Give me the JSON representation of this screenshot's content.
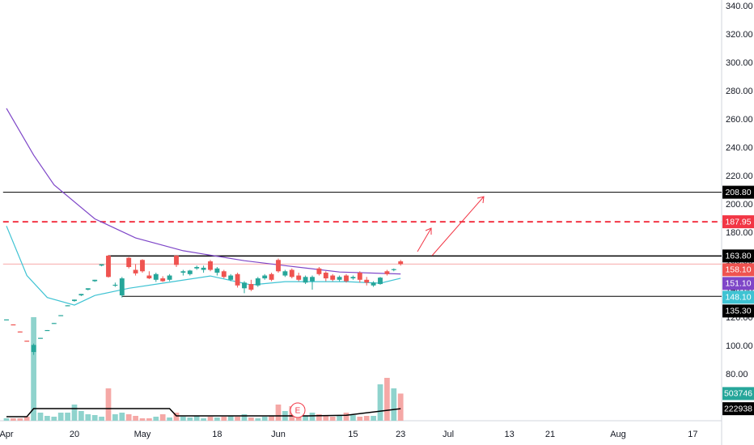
{
  "chart_data": {
    "type": "candlestick",
    "xlim": [
      -0.5,
      104.5
    ],
    "xticks": [
      {
        "value": 0,
        "label": "Apr"
      },
      {
        "value": 10,
        "label": "20"
      },
      {
        "value": 20,
        "label": "May"
      },
      {
        "value": 31,
        "label": "18"
      },
      {
        "value": 40,
        "label": "Jun"
      },
      {
        "value": 51,
        "label": "15"
      },
      {
        "value": 58,
        "label": "23"
      },
      {
        "value": 65,
        "label": "Jul"
      },
      {
        "value": 74,
        "label": "13"
      },
      {
        "value": 80,
        "label": "21"
      },
      {
        "value": 90,
        "label": "Aug"
      },
      {
        "value": 101,
        "label": "17"
      }
    ],
    "ylim": [
      47.5,
      344.5
    ],
    "yticks": [
      {
        "value": 80,
        "label": "80.00"
      },
      {
        "value": 100,
        "label": "100.00"
      },
      {
        "value": 120,
        "label": "120.00"
      },
      {
        "value": 140,
        "label": "140.00"
      },
      {
        "value": 160,
        "label": "160.00"
      },
      {
        "value": 180,
        "label": "180.00"
      },
      {
        "value": 200,
        "label": "200.00"
      },
      {
        "value": 220,
        "label": "220.00"
      },
      {
        "value": 240,
        "label": "240.00"
      },
      {
        "value": 260,
        "label": "260.00"
      },
      {
        "value": 280,
        "label": "280.00"
      },
      {
        "value": 300,
        "label": "300.00"
      },
      {
        "value": 320,
        "label": "320.00"
      },
      {
        "value": 340,
        "label": "340.00"
      }
    ],
    "up_color": "#26a69a",
    "down_color": "#ef5350",
    "volume_up_color": "#8fd3cd",
    "volume_down_color": "#f5a8a6",
    "open": [
      119,
      115.5,
      110.5,
      104,
      96,
      105.5,
      111,
      116,
      121.5,
      128.5,
      132,
      136,
      140,
      146,
      157,
      164,
      143,
      136,
      162.5,
      154,
      161,
      150,
      147,
      148,
      147,
      164,
      152,
      151,
      155,
      154,
      160,
      152,
      153,
      147,
      151,
      141,
      144,
      143,
      148,
      151,
      161,
      150,
      154,
      150,
      145,
      146,
      155,
      152,
      150,
      147,
      150,
      148,
      152,
      147,
      143,
      144,
      153,
      154,
      160
    ],
    "high": [
      119,
      115.5,
      110.5,
      104,
      102,
      106,
      111.5,
      116.5,
      122,
      129,
      133,
      137,
      141,
      147,
      158,
      164.5,
      145,
      149,
      163,
      158,
      161.5,
      153,
      152,
      149.5,
      151,
      164.5,
      154,
      154,
      157,
      157,
      161,
      156,
      154,
      151,
      152,
      146,
      147,
      149,
      151,
      152,
      162,
      154,
      155,
      152,
      150,
      150,
      156,
      153,
      151,
      150,
      151,
      150,
      153,
      149,
      146,
      149,
      154,
      155,
      161
    ],
    "low": [
      119,
      115,
      110,
      103.5,
      94,
      105.5,
      111,
      116,
      121.5,
      128.5,
      131.5,
      135.5,
      139.5,
      145.5,
      156.5,
      148.5,
      142,
      134.5,
      155,
      150,
      152,
      147.5,
      145.5,
      145.5,
      146,
      156,
      150,
      150,
      154,
      152,
      153,
      150,
      148,
      146,
      141.5,
      137.5,
      139,
      142,
      147,
      146,
      152,
      149,
      148,
      146,
      144,
      140,
      150,
      146,
      146,
      146,
      145,
      147,
      145,
      143,
      142,
      143.5,
      150,
      153,
      157
    ],
    "close": [
      119,
      115,
      110,
      103.5,
      101,
      106,
      111.5,
      116.5,
      122,
      129,
      133,
      137,
      141,
      147,
      158,
      149,
      143.5,
      148,
      156,
      151.5,
      153,
      148,
      151,
      146,
      150,
      157.5,
      153,
      153.5,
      156,
      155.5,
      154,
      155,
      149,
      150,
      143,
      145,
      140,
      148,
      150,
      147,
      153,
      153,
      149,
      147,
      149,
      149,
      151,
      148,
      147,
      149,
      146,
      149,
      147,
      145,
      145,
      148.5,
      151,
      154.5,
      158.1
    ],
    "volumes": [
      45000,
      45000,
      45000,
      75000,
      1920000,
      150000,
      90000,
      75000,
      150000,
      150000,
      300000,
      180000,
      120000,
      105000,
      75000,
      600000,
      120000,
      150000,
      120000,
      90000,
      45000,
      45000,
      75000,
      120000,
      60000,
      150000,
      75000,
      60000,
      90000,
      45000,
      75000,
      60000,
      75000,
      90000,
      75000,
      120000,
      60000,
      45000,
      75000,
      90000,
      300000,
      180000,
      270000,
      120000,
      90000,
      150000,
      120000,
      90000,
      75000,
      105000,
      150000,
      105000,
      75000,
      90000,
      90000,
      675000,
      795000,
      600000,
      503746
    ],
    "volume_ylim": [
      0,
      7800000
    ],
    "slow_ma": {
      "color": "#7e46c8",
      "x": [
        0,
        4,
        7,
        13,
        19,
        26,
        35,
        41,
        49,
        58
      ],
      "values": [
        268,
        235,
        214,
        190,
        176.5,
        167.5,
        160.5,
        157,
        152.5,
        151.1
      ]
    },
    "fast_ma": {
      "color": "#3fc3d3",
      "x": [
        0,
        3,
        6,
        10,
        13,
        18,
        23,
        30,
        36,
        41,
        50,
        55,
        58
      ],
      "values": [
        185,
        150,
        134.5,
        129.1,
        135.9,
        141,
        144.6,
        149.7,
        143.4,
        145.7,
        145.7,
        144.6,
        148.1
      ]
    },
    "volume_ma": {
      "color": "#000000",
      "x": [
        0,
        3,
        4,
        24,
        25,
        44,
        50,
        58
      ],
      "values": [
        75000,
        75000,
        225000,
        225000,
        90000,
        90000,
        100000,
        222938
      ]
    },
    "levels": [
      {
        "value": 208.8,
        "color": "#000000",
        "dashed": false,
        "start": -0.5,
        "width": 1
      },
      {
        "value": 187.95,
        "color": "#f23645",
        "dashed": true,
        "start": -0.5,
        "width": 2
      },
      {
        "value": 163.8,
        "color": "#000000",
        "dashed": false,
        "start": 15,
        "width": 1.5
      },
      {
        "value": 135.3,
        "color": "#000000",
        "dashed": false,
        "start": 17,
        "width": 1
      },
      {
        "value": 158.1,
        "color": "#f7a9a9",
        "dashed": false,
        "start": -0.5,
        "width": 1
      }
    ],
    "price_badges": [
      {
        "value": 208.8,
        "label": "208.80",
        "color": "#000000"
      },
      {
        "value": 187.95,
        "label": "187.95",
        "color": "#f23645"
      },
      {
        "value": 163.8,
        "label": "163.80",
        "color": "#000000"
      },
      {
        "value": 158.1,
        "label": "158.10",
        "color": "#ef5350"
      },
      {
        "value": 151.1,
        "label": "151.10",
        "color": "#7e46c8"
      },
      {
        "value": 148.1,
        "label": "148.10",
        "color": "#3fc3d3"
      },
      {
        "value": 135.3,
        "label": "135.30",
        "color": "#000000"
      }
    ],
    "volume_badges": [
      {
        "value": 503746,
        "color": "#26a69a"
      },
      {
        "value": 222938,
        "color": "#000000"
      }
    ],
    "earnings_label": "E"
  }
}
